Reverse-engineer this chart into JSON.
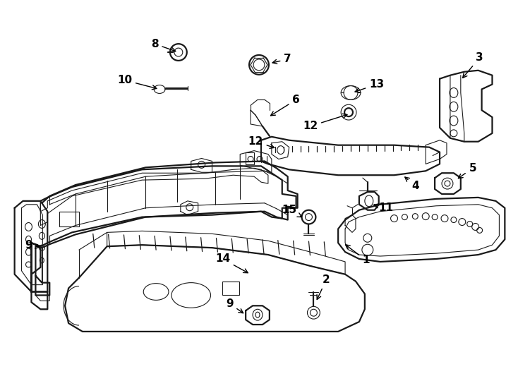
{
  "background_color": "#ffffff",
  "line_color": "#1a1a1a",
  "figsize": [
    7.34,
    5.4
  ],
  "dpi": 100,
  "lw_main": 1.3,
  "lw_thin": 0.8,
  "lw_thick": 1.6
}
